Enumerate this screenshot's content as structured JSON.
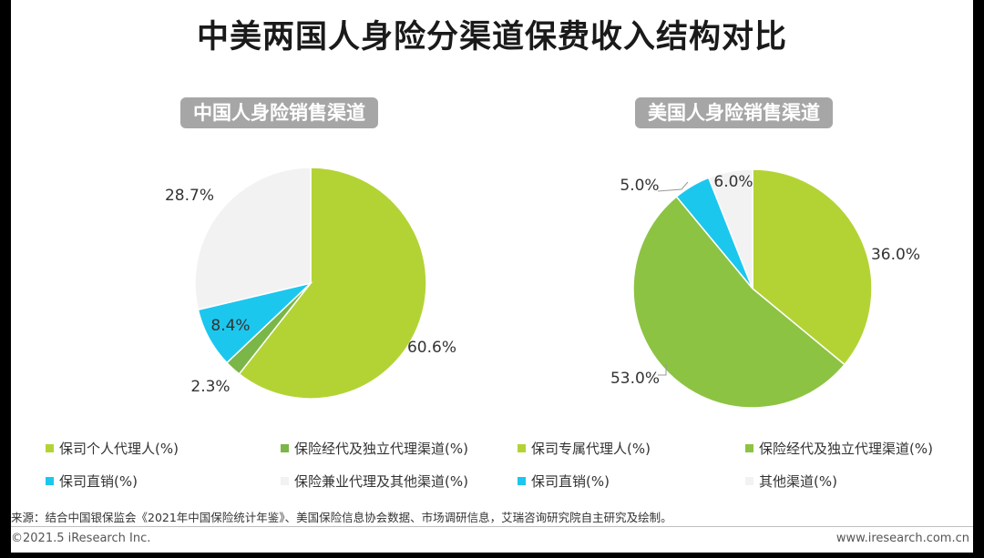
{
  "title": "中美两国人身险分渠道保费收入结构对比",
  "chart_data": [
    {
      "type": "pie",
      "title": "中国人身险销售渠道",
      "categories": [
        "保司个人代理人(%)",
        "保险经代及独立代理渠道(%)",
        "保司直销(%)",
        "保险兼业代理及其他渠道(%)"
      ],
      "values": [
        60.6,
        2.3,
        8.4,
        28.7
      ],
      "labels": [
        "60.6%",
        "2.3%",
        "8.4%",
        "28.7%"
      ],
      "colors": [
        "#b3d335",
        "#7ab648",
        "#1cc7ee",
        "#f2f2f2"
      ]
    },
    {
      "type": "pie",
      "title": "美国人身险销售渠道",
      "categories": [
        "保司专属代理人(%)",
        "保险经代及独立代理渠道(%)",
        "保司直销(%)",
        "其他渠道(%)"
      ],
      "values": [
        36.0,
        53.0,
        5.0,
        6.0
      ],
      "labels": [
        "36.0%",
        "53.0%",
        "5.0%",
        "6.0%"
      ],
      "colors": [
        "#b3d335",
        "#8cc343",
        "#1cc7ee",
        "#f2f2f2"
      ]
    }
  ],
  "legend": [
    {
      "label": "保司个人代理人(%)",
      "color": "#b3d335"
    },
    {
      "label": "保险经代及独立代理渠道(%)",
      "color": "#7ab648"
    },
    {
      "label": "保司专属代理人(%)",
      "color": "#b3d335"
    },
    {
      "label": "保险经代及独立代理渠道(%)",
      "color": "#8cc343"
    },
    {
      "label": "保司直销(%)",
      "color": "#1cc7ee"
    },
    {
      "label": "保险兼业代理及其他渠道(%)",
      "color": "#f2f2f2"
    },
    {
      "label": "保司直销(%)",
      "color": "#1cc7ee"
    },
    {
      "label": "其他渠道(%)",
      "color": "#f2f2f2"
    }
  ],
  "footer": {
    "source": "来源：结合中国银保监会《2021年中国保险统计年鉴》、美国保险信息协会数据、市场调研信息，艾瑞咨询研究院自主研究及绘制。",
    "copyright": "©2021.5 iResearch Inc.",
    "site": "www.iresearch.com.cn"
  }
}
